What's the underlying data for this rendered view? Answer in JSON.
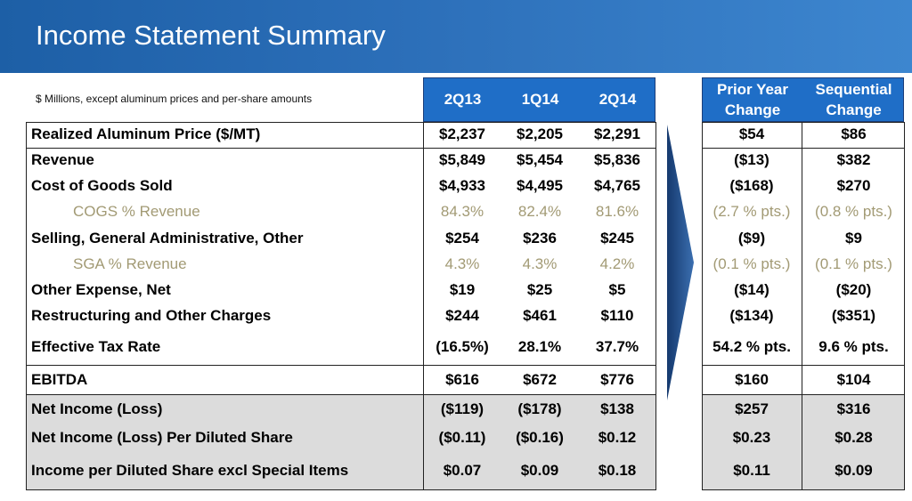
{
  "title": "Income Statement Summary",
  "units_note": "$ Millions, except aluminum prices and per-share amounts",
  "columns": [
    "2Q13",
    "1Q14",
    "2Q14"
  ],
  "change_columns": [
    {
      "line1": "Prior Year",
      "line2": "Change"
    },
    {
      "line1": "Sequential",
      "line2": "Change"
    }
  ],
  "rows": [
    {
      "label": "Realized Aluminum Price ($/MT)",
      "values": [
        "$2,237",
        "$2,205",
        "$2,291"
      ],
      "changes": [
        "$54",
        "$86"
      ]
    },
    {
      "label": "Revenue",
      "values": [
        "$5,849",
        "$5,454",
        "$5,836"
      ],
      "changes": [
        "($13)",
        "$382"
      ]
    },
    {
      "label": "Cost of Goods Sold",
      "values": [
        "$4,933",
        "$4,495",
        "$4,765"
      ],
      "changes": [
        "($168)",
        "$270"
      ]
    },
    {
      "label": "COGS % Revenue",
      "values": [
        "84.3%",
        "82.4%",
        "81.6%"
      ],
      "changes": [
        "(2.7 % pts.)",
        "(0.8 % pts.)"
      ]
    },
    {
      "label": "Selling, General Administrative, Other",
      "values": [
        "$254",
        "$236",
        "$245"
      ],
      "changes": [
        "($9)",
        "$9"
      ]
    },
    {
      "label": "SGA % Revenue",
      "values": [
        "4.3%",
        "4.3%",
        "4.2%"
      ],
      "changes": [
        "(0.1 % pts.)",
        "(0.1 % pts.)"
      ]
    },
    {
      "label": "Other Expense, Net",
      "values": [
        "$19",
        "$25",
        "$5"
      ],
      "changes": [
        "($14)",
        "($20)"
      ]
    },
    {
      "label": "Restructuring and Other Charges",
      "values": [
        "$244",
        "$461",
        "$110"
      ],
      "changes": [
        "($134)",
        "($351)"
      ]
    },
    {
      "label": "Effective Tax Rate",
      "values": [
        "(16.5%)",
        "28.1%",
        "37.7%"
      ],
      "changes": [
        "54.2 % pts.",
        "9.6 % pts."
      ]
    },
    {
      "label": "EBITDA",
      "values": [
        "$616",
        "$672",
        "$776"
      ],
      "changes": [
        "$160",
        "$104"
      ]
    },
    {
      "label": "Net Income (Loss)",
      "values": [
        "($119)",
        "($178)",
        "$138"
      ],
      "changes": [
        "$257",
        "$316"
      ]
    },
    {
      "label": "Net Income (Loss) Per Diluted Share",
      "values": [
        "($0.11)",
        "($0.16)",
        "$0.12"
      ],
      "changes": [
        "$0.23",
        "$0.28"
      ]
    },
    {
      "label": "Income per Diluted Share excl Special Items",
      "values": [
        "$0.07",
        "$0.09",
        "$0.18"
      ],
      "changes": [
        "$0.11",
        "$0.09"
      ]
    }
  ]
}
